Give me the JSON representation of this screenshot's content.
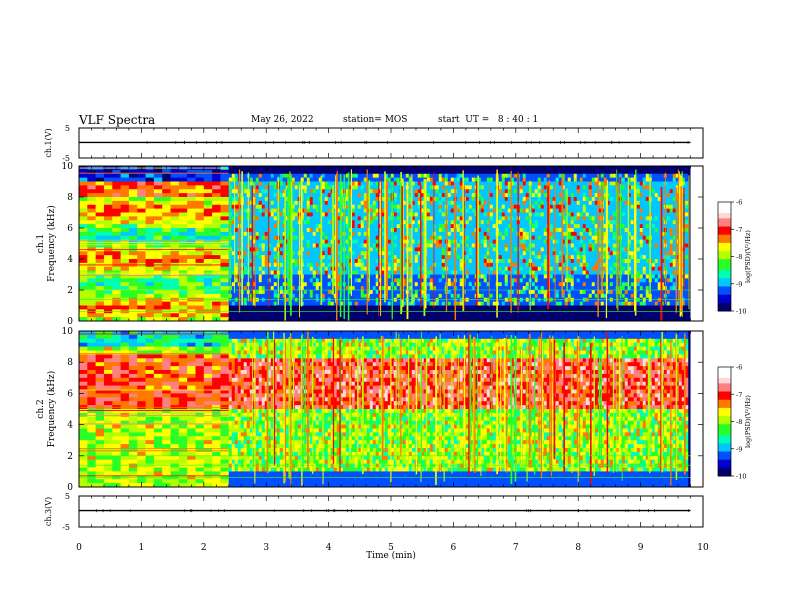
{
  "header": {
    "title": "VLF Spectra",
    "date": "May 26, 2022",
    "station": "station= MOS",
    "start": "start  UT =   8 : 40 : 1"
  },
  "colors": {
    "spectrum": [
      "#00006e",
      "#0000d0",
      "#0050ff",
      "#00c8ff",
      "#00ffb4",
      "#28ff28",
      "#b4ff00",
      "#ffff00",
      "#ff7800",
      "#ff0000",
      "#ff8080",
      "#ffd8d8"
    ],
    "waveform": "#000000"
  },
  "chart_data": [
    {
      "type": "line",
      "id": "ch1-waveform",
      "ylabel": "ch.1(V)",
      "ylim": [
        -5,
        5
      ],
      "yticks": [
        "5",
        "-5"
      ],
      "x": [
        0,
        9.8
      ],
      "values": [
        0.2,
        0.2
      ]
    },
    {
      "type": "heatmap",
      "id": "ch1-spectrogram",
      "ylabel": "ch.1\nFrequency (kHz)",
      "ylim": [
        0,
        10
      ],
      "yticks": [
        "0",
        "2",
        "4",
        "6",
        "8",
        "10"
      ],
      "xlim": [
        0,
        10
      ],
      "data_extent_min": 9.8,
      "transition_min": 2.4,
      "segments": [
        {
          "x_range": [
            0,
            2.4
          ],
          "pattern": "broadband noise, strong 0–9 kHz"
        },
        {
          "x_range": [
            2.4,
            9.8
          ],
          "pattern": "impulsive spikes 1–9.5 kHz"
        }
      ],
      "colorbar": {
        "label": "log(PSD)(V²/Hz)",
        "ticks": [
          "-6",
          "-7",
          "-8",
          "-9",
          "-10"
        ],
        "range": [
          -10,
          -6
        ]
      }
    },
    {
      "type": "heatmap",
      "id": "ch2-spectrogram",
      "ylabel": "ch.2\nFrequency (kHz)",
      "ylim": [
        0,
        10
      ],
      "yticks": [
        "0",
        "2",
        "4",
        "6",
        "8",
        "10"
      ],
      "xlim": [
        0,
        10
      ],
      "data_extent_min": 9.8,
      "transition_min": 2.4,
      "segments": [
        {
          "x_range": [
            0,
            2.4
          ],
          "pattern": "broadband noise, strong 0–9 kHz"
        },
        {
          "x_range": [
            2.4,
            9.8
          ],
          "pattern": "intense band 5–8 kHz with spikes"
        }
      ],
      "colorbar": {
        "label": "log(PSD)(V²/Hz)",
        "ticks": [
          "-6",
          "-7",
          "-8",
          "-9",
          "-10"
        ],
        "range": [
          -10,
          -6
        ]
      }
    },
    {
      "type": "line",
      "id": "ch3-waveform",
      "ylabel": "ch.3(V)",
      "ylim": [
        -5,
        5
      ],
      "yticks": [
        "5",
        "-5"
      ],
      "x": [
        0,
        9.8
      ],
      "values": [
        0.3,
        0.3
      ]
    }
  ],
  "xaxis": {
    "label": "Time  (min)",
    "ticks": [
      "0",
      "1",
      "2",
      "3",
      "4",
      "5",
      "6",
      "7",
      "8",
      "9",
      "10"
    ]
  }
}
